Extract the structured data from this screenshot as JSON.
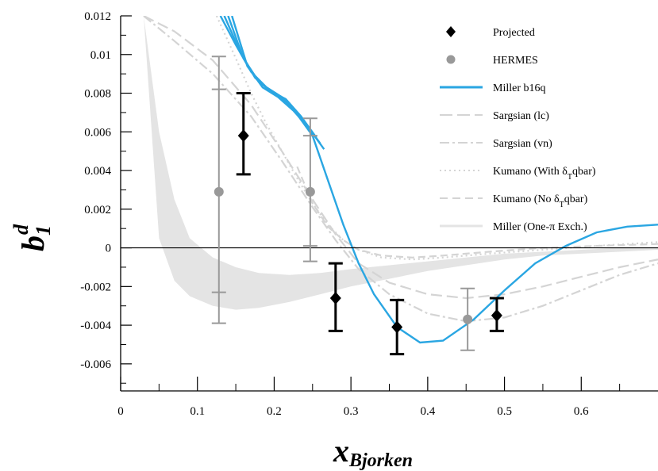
{
  "chart_data": {
    "type": "scatter",
    "xlabel": {
      "main": "x",
      "sub": "Bjorken"
    },
    "ylabel": {
      "main": "b",
      "sub": "1",
      "sup": "d"
    },
    "xlim": [
      0,
      0.7
    ],
    "ylim": [
      -0.0074,
      0.012
    ],
    "x_ticks": [
      0,
      0.1,
      0.2,
      0.3,
      0.4,
      0.5,
      0.6
    ],
    "x_tick_labels": [
      "0",
      "0.1",
      "0.2",
      "0.3",
      "0.4",
      "0.5",
      "0.6"
    ],
    "y_ticks": [
      -0.006,
      -0.004,
      -0.002,
      0,
      0.002,
      0.004,
      0.006,
      0.008,
      0.01,
      0.012
    ],
    "y_tick_labels": [
      "-0.006",
      "-0.004",
      "-0.002",
      "0",
      "0.002",
      "0.004",
      "0.006",
      "0.008",
      "0.01",
      "0.012"
    ],
    "grid": false,
    "legend_position": "top-right",
    "legend": [
      {
        "label": "Projected",
        "style": "black-diamond"
      },
      {
        "label": "HERMES",
        "style": "grey-circle"
      },
      {
        "label": "Miller b16q",
        "style": "blue-line"
      },
      {
        "label": "Sargsian (lc)",
        "style": "grey-long-dash"
      },
      {
        "label": "Sargsian (vn)",
        "style": "grey-dash-dot"
      },
      {
        "label": "Kumano (With δ",
        "sub": "T",
        "label_after": "qbar)",
        "style": "grey-dotted"
      },
      {
        "label": "Kumano (No δ",
        "sub": "T",
        "label_after": "qbar)",
        "style": "grey-dash"
      },
      {
        "label": "Miller (One-π Exch.)",
        "style": "grey-band"
      }
    ],
    "series": [
      {
        "name": "Projected",
        "points": [
          {
            "x": 0.16,
            "y": 0.0058,
            "y_low": 0.0038,
            "y_high": 0.008
          },
          {
            "x": 0.28,
            "y": -0.0026,
            "y_low": -0.0043,
            "y_high": -0.0008
          },
          {
            "x": 0.36,
            "y": -0.0041,
            "y_low": -0.0055,
            "y_high": -0.0027
          },
          {
            "x": 0.49,
            "y": -0.0035,
            "y_low": -0.0043,
            "y_high": -0.0026
          }
        ]
      },
      {
        "name": "HERMES",
        "points": [
          {
            "x": 0.128,
            "y": 0.0029,
            "y_low": -0.0039,
            "y_high": 0.0099,
            "sys_low": -0.0023,
            "sys_high": 0.0082
          },
          {
            "x": 0.247,
            "y": 0.0029,
            "y_low": -0.0007,
            "y_high": 0.0067,
            "sys_low": 0.0001,
            "sys_high": 0.0058
          },
          {
            "x": 0.452,
            "y": -0.0037,
            "y_low": -0.0053,
            "y_high": -0.0021
          }
        ]
      },
      {
        "name": "Miller b16q",
        "curves": [
          {
            "x": [
              0.13,
              0.15,
              0.17,
              0.19,
              0.21,
              0.23,
              0.25,
              0.27,
              0.29,
              0.31,
              0.33,
              0.36,
              0.39,
              0.42,
              0.46,
              0.5,
              0.54,
              0.58,
              0.62,
              0.66,
              0.7
            ],
            "y": [
              0.012,
              0.0105,
              0.0091,
              0.0083,
              0.0078,
              0.0069,
              0.0058,
              0.0035,
              0.0012,
              -0.0008,
              -0.0024,
              -0.0041,
              -0.0049,
              -0.0048,
              -0.0037,
              -0.0022,
              -0.0008,
              0.0001,
              0.0008,
              0.0011,
              0.0012
            ]
          },
          {
            "x": [
              0.135,
              0.155,
              0.175,
              0.195,
              0.215,
              0.235,
              0.255
            ],
            "y": [
              0.012,
              0.0102,
              0.0088,
              0.0081,
              0.0077,
              0.0068,
              0.0057
            ]
          },
          {
            "x": [
              0.14,
              0.16,
              0.18,
              0.2,
              0.22,
              0.24,
              0.26
            ],
            "y": [
              0.012,
              0.0098,
              0.0086,
              0.008,
              0.0074,
              0.0065,
              0.0054
            ]
          },
          {
            "x": [
              0.145,
              0.165,
              0.185,
              0.205,
              0.225,
              0.245,
              0.265
            ],
            "y": [
              0.012,
              0.0094,
              0.0083,
              0.0078,
              0.0071,
              0.0062,
              0.0051
            ]
          }
        ]
      },
      {
        "name": "Sargsian (lc)",
        "x": [
          0.03,
          0.07,
          0.12,
          0.17,
          0.21,
          0.25,
          0.28,
          0.31,
          0.35,
          0.4,
          0.45,
          0.5,
          0.55,
          0.6,
          0.65,
          0.7
        ],
        "y": [
          0.012,
          0.0112,
          0.0097,
          0.0074,
          0.005,
          0.0025,
          0.0007,
          -0.0008,
          -0.0018,
          -0.0024,
          -0.0026,
          -0.0024,
          -0.002,
          -0.0015,
          -0.001,
          -0.0006
        ]
      },
      {
        "name": "Sargsian (vn)",
        "x": [
          0.03,
          0.07,
          0.12,
          0.17,
          0.21,
          0.25,
          0.28,
          0.31,
          0.35,
          0.4,
          0.45,
          0.5,
          0.55,
          0.6,
          0.65,
          0.7
        ],
        "y": [
          0.012,
          0.0107,
          0.009,
          0.0068,
          0.0045,
          0.0021,
          0.0004,
          -0.0011,
          -0.0024,
          -0.0034,
          -0.0038,
          -0.0036,
          -0.003,
          -0.0022,
          -0.0014,
          -0.0008
        ]
      },
      {
        "name": "Kumano (With δTqbar)",
        "x": [
          0.125,
          0.15,
          0.17,
          0.19,
          0.21,
          0.23,
          0.25,
          0.27,
          0.29,
          0.31,
          0.34,
          0.38,
          0.42,
          0.48,
          0.55,
          0.62,
          0.7
        ],
        "y": [
          0.012,
          0.0098,
          0.008,
          0.0064,
          0.005,
          0.0036,
          0.0023,
          0.0012,
          0.0004,
          -0.0001,
          -0.0005,
          -0.0006,
          -0.0005,
          -0.0003,
          -0.0001,
          0.0001,
          0.0003
        ]
      },
      {
        "name": "Kumano (No δTqbar)",
        "x": [
          0.23,
          0.25,
          0.27,
          0.29,
          0.31,
          0.34,
          0.38,
          0.42,
          0.48,
          0.55,
          0.62,
          0.7
        ],
        "y": [
          0.0042,
          0.0023,
          0.0011,
          0.0004,
          -0.0001,
          -0.0004,
          -0.0005,
          -0.0004,
          -0.0002,
          0.0,
          0.0001,
          0.0002
        ]
      },
      {
        "name": "Miller (One-π Exch.)",
        "x": [
          0.03,
          0.05,
          0.07,
          0.09,
          0.12,
          0.15,
          0.18,
          0.22,
          0.26,
          0.3,
          0.35,
          0.4,
          0.45,
          0.5,
          0.55,
          0.6,
          0.65,
          0.7
        ],
        "upper": [
          0.012,
          0.006,
          0.0025,
          0.0005,
          -0.0005,
          -0.001,
          -0.0013,
          -0.0014,
          -0.0013,
          -0.0011,
          -0.0009,
          -0.0007,
          -0.0005,
          -0.0003,
          -0.0002,
          -0.0001,
          0.0,
          0.0
        ],
        "lower": [
          0.012,
          0.0005,
          -0.0017,
          -0.0025,
          -0.003,
          -0.0032,
          -0.0031,
          -0.0028,
          -0.0024,
          -0.002,
          -0.0016,
          -0.0012,
          -0.0009,
          -0.0006,
          -0.0004,
          -0.0003,
          -0.0002,
          -0.0001
        ]
      }
    ],
    "colors": {
      "projected": "#000000",
      "hermes": "#999999",
      "miller_b16q": "#2aa6e2",
      "theory_grey": "#d4d4d4",
      "band": "#e4e4e4"
    }
  }
}
